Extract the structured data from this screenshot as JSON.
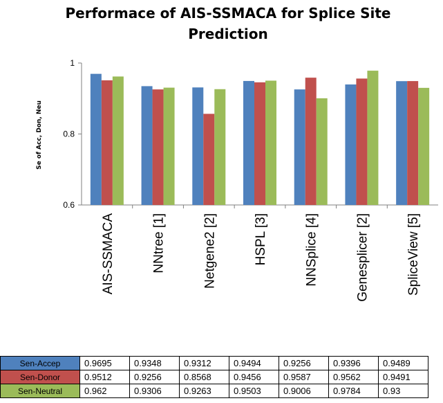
{
  "chart_data": {
    "type": "bar",
    "title": "Performace of AIS-SSMACA for Splice Site Prediction",
    "ylabel": "Se of Acc, Don, Neu",
    "xlabel": "",
    "ylim": [
      0.6,
      1.0
    ],
    "yticks": [
      "0.6",
      "0.8",
      "1"
    ],
    "grid": false,
    "legend": "table-below",
    "categories": [
      "AIS-SSMACA",
      "NNtree [1]",
      "Netgene2 [2]",
      "HSPL [3]",
      "NNSplice [4]",
      "Genesplicer [2]",
      "SpliceView [5]"
    ],
    "series": [
      {
        "name": "Sen-Accep",
        "color": "#4f81bd",
        "values": [
          0.9695,
          0.9348,
          0.9312,
          0.9494,
          0.9256,
          0.9396,
          0.9489
        ]
      },
      {
        "name": "Sen-Donor",
        "color": "#c0504d",
        "values": [
          0.9512,
          0.9256,
          0.8568,
          0.9456,
          0.9587,
          0.9562,
          0.9491
        ]
      },
      {
        "name": "Sen-Neutral",
        "color": "#9bbb59",
        "values": [
          0.962,
          0.9306,
          0.9263,
          0.9503,
          0.9006,
          0.9784,
          0.93
        ]
      }
    ],
    "table": {
      "Sen-Accep": [
        "0.9695",
        "0.9348",
        "0.9312",
        "0.9494",
        "0.9256",
        "0.9396",
        "0.9489"
      ],
      "Sen-Donor": [
        "0.9512",
        "0.9256",
        "0.8568",
        "0.9456",
        "0.9587",
        "0.9562",
        "0.9491"
      ],
      "Sen-Neutral": [
        "0.962",
        "0.9306",
        "0.9263",
        "0.9503",
        "0.9006",
        "0.9784",
        "0.93"
      ]
    }
  }
}
